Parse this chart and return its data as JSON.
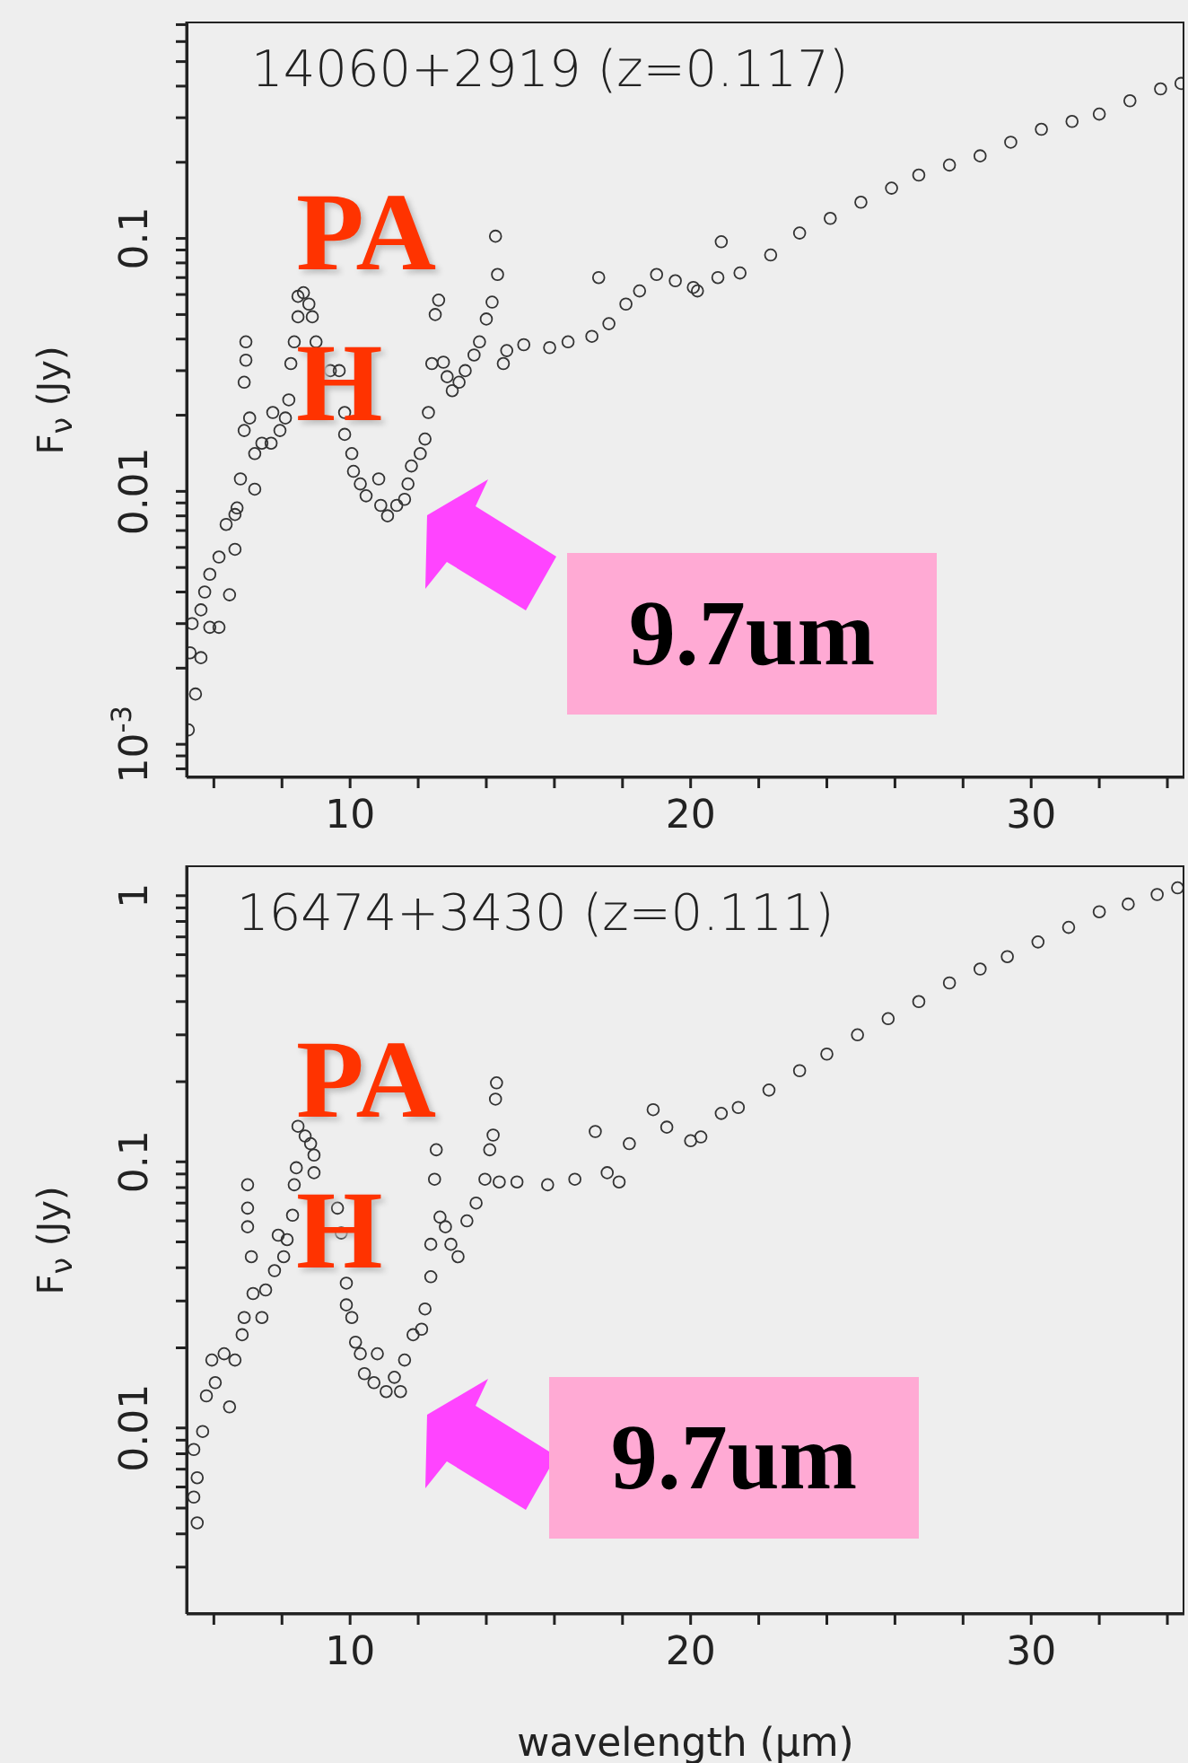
{
  "chart_data": [
    {
      "type": "scatter",
      "title": "14060+2919 (z=0.117)",
      "ylabel": "F$_{ν}$ (Jy)",
      "color": "#333333",
      "marker": "circle",
      "log": "y",
      "annotations": [
        "PA H",
        "9.7um"
      ],
      "xlim": [
        5.2,
        34.5
      ],
      "xticks": [
        {
          "value": 6,
          "label": null
        },
        {
          "value": 8,
          "label": null
        },
        10,
        {
          "value": 12,
          "label": null
        },
        {
          "value": 14,
          "label": null
        },
        {
          "value": 16,
          "label": null
        },
        {
          "value": 18,
          "label": null
        },
        20,
        {
          "value": 22,
          "label": null
        },
        {
          "value": 24,
          "label": null
        },
        {
          "value": 26,
          "label": null
        },
        {
          "value": 28,
          "label": null
        },
        30,
        {
          "value": 32,
          "label": null
        },
        {
          "value": 34,
          "label": null
        }
      ],
      "ylim": [
        0.00074,
        0.72
      ],
      "yticks": [
        {
          "value": 0.0008,
          "label": null
        },
        {
          "value": 0.0009,
          "label": null
        },
        {
          "value": 0.001,
          "label": "10$^{-3}$"
        },
        {
          "value": 0.002,
          "label": null
        },
        {
          "value": 0.003,
          "label": null
        },
        {
          "value": 0.004,
          "label": null
        },
        {
          "value": 0.005,
          "label": null
        },
        {
          "value": 0.006,
          "label": null
        },
        {
          "value": 0.007,
          "label": null
        },
        {
          "value": 0.008,
          "label": null
        },
        {
          "value": 0.009,
          "label": null
        },
        0.01,
        {
          "value": 0.02,
          "label": null
        },
        {
          "value": 0.03,
          "label": null
        },
        {
          "value": 0.04,
          "label": null
        },
        {
          "value": 0.05,
          "label": null
        },
        {
          "value": 0.06,
          "label": null
        },
        {
          "value": 0.07,
          "label": null
        },
        {
          "value": 0.08,
          "label": null
        },
        {
          "value": 0.09,
          "label": null
        },
        0.1,
        {
          "value": 0.2,
          "label": null
        },
        {
          "value": 0.3,
          "label": null
        },
        {
          "value": 0.4,
          "label": null
        },
        {
          "value": 0.5,
          "label": null
        },
        {
          "value": 0.6,
          "label": null
        },
        {
          "value": 0.7,
          "label": null
        }
      ],
      "x": [
        5.25,
        5.46,
        5.3,
        5.62,
        5.36,
        5.62,
        5.88,
        6.15,
        5.73,
        5.88,
        6.15,
        6.46,
        6.36,
        6.62,
        6.68,
        6.62,
        6.78,
        7.2,
        6.94,
        6.94,
        6.89,
        7.05,
        6.89,
        7.2,
        7.41,
        7.68,
        7.94,
        7.73,
        8.1,
        8.2,
        8.26,
        8.36,
        8.47,
        8.47,
        8.63,
        8.79,
        8.89,
        9.0,
        9.05,
        9.42,
        9.68,
        9.84,
        9.84,
        10.05,
        10.1,
        10.3,
        10.47,
        10.84,
        10.9,
        11.1,
        11.37,
        11.6,
        11.7,
        11.8,
        12.06,
        12.2,
        12.3,
        12.4,
        12.5,
        12.6,
        12.74,
        12.85,
        13.0,
        13.2,
        13.38,
        13.64,
        13.8,
        14.0,
        14.17,
        14.33,
        14.27,
        14.5,
        14.6,
        15.1,
        15.86,
        16.4,
        17.1,
        17.3,
        17.6,
        18.1,
        18.5,
        19.0,
        19.55,
        20.08,
        20.2,
        20.9,
        20.8,
        21.45,
        22.35,
        23.2,
        24.1,
        25.0,
        25.9,
        26.7,
        27.6,
        28.5,
        29.4,
        30.3,
        31.2,
        32.0,
        32.9,
        33.8,
        34.4
      ],
      "values": [
        0.00114,
        0.00158,
        0.0023,
        0.0022,
        0.003,
        0.0034,
        0.0029,
        0.0029,
        0.004,
        0.0047,
        0.0055,
        0.0039,
        0.0074,
        0.0081,
        0.0086,
        0.0059,
        0.0112,
        0.0102,
        0.039,
        0.033,
        0.027,
        0.0195,
        0.0174,
        0.0141,
        0.0155,
        0.0155,
        0.0174,
        0.0205,
        0.0195,
        0.023,
        0.032,
        0.039,
        0.049,
        0.059,
        0.061,
        0.055,
        0.049,
        0.039,
        null,
        0.03,
        0.03,
        0.0205,
        0.0168,
        0.0141,
        0.012,
        0.0107,
        0.0096,
        0.0112,
        0.0088,
        0.008,
        0.0088,
        0.0093,
        0.0107,
        0.0126,
        0.0141,
        0.0161,
        0.0205,
        0.032,
        0.05,
        0.057,
        0.0324,
        0.0284,
        0.025,
        0.027,
        0.03,
        0.0346,
        0.039,
        0.048,
        0.056,
        0.072,
        0.102,
        0.032,
        0.036,
        0.038,
        0.037,
        0.039,
        0.041,
        0.07,
        0.046,
        0.055,
        0.062,
        0.072,
        0.068,
        0.064,
        0.062,
        0.097,
        0.07,
        0.073,
        0.086,
        0.105,
        0.12,
        0.139,
        0.158,
        0.178,
        0.195,
        0.212,
        0.24,
        0.27,
        0.29,
        0.31,
        0.35,
        0.39,
        0.41
      ]
    },
    {
      "type": "scatter",
      "title": "16474+3430 (z=0.111)",
      "ylabel": "F$_{ν}$ (Jy)",
      "xlabel": "wavelength (μm)",
      "color": "#333333",
      "marker": "circle",
      "log": "y",
      "annotations": [
        "PA H",
        "9.7um"
      ],
      "xlim": [
        5.2,
        34.5
      ],
      "xticks": [
        {
          "value": 6,
          "label": null
        },
        {
          "value": 8,
          "label": null
        },
        10,
        {
          "value": 12,
          "label": null
        },
        {
          "value": 14,
          "label": null
        },
        {
          "value": 16,
          "label": null
        },
        {
          "value": 18,
          "label": null
        },
        20,
        {
          "value": 22,
          "label": null
        },
        {
          "value": 24,
          "label": null
        },
        {
          "value": 26,
          "label": null
        },
        {
          "value": 28,
          "label": null
        },
        30,
        {
          "value": 32,
          "label": null
        },
        {
          "value": 34,
          "label": null
        }
      ],
      "ylim": [
        0.002,
        1.3
      ],
      "yticks": [
        {
          "value": 0.003,
          "label": null
        },
        {
          "value": 0.004,
          "label": null
        },
        {
          "value": 0.005,
          "label": null
        },
        {
          "value": 0.006,
          "label": null
        },
        {
          "value": 0.007,
          "label": null
        },
        {
          "value": 0.008,
          "label": null
        },
        {
          "value": 0.009,
          "label": null
        },
        0.01,
        {
          "value": 0.02,
          "label": null
        },
        {
          "value": 0.03,
          "label": null
        },
        {
          "value": 0.04,
          "label": null
        },
        {
          "value": 0.05,
          "label": null
        },
        {
          "value": 0.06,
          "label": null
        },
        {
          "value": 0.07,
          "label": null
        },
        {
          "value": 0.08,
          "label": null
        },
        {
          "value": 0.09,
          "label": null
        },
        0.1,
        {
          "value": 0.2,
          "label": null
        },
        {
          "value": 0.3,
          "label": null
        },
        {
          "value": 0.4,
          "label": null
        },
        {
          "value": 0.5,
          "label": null
        },
        {
          "value": 0.6,
          "label": null
        },
        {
          "value": 0.7,
          "label": null
        },
        {
          "value": 0.8,
          "label": null
        },
        {
          "value": 0.9,
          "label": null
        },
        1
      ],
      "x": [
        5.51,
        5.41,
        5.51,
        5.41,
        5.67,
        5.78,
        6.04,
        5.94,
        6.46,
        6.3,
        6.62,
        6.83,
        6.89,
        6.99,
        6.99,
        6.99,
        7.1,
        7.15,
        7.41,
        7.52,
        7.78,
        7.89,
        8.05,
        8.15,
        8.31,
        8.36,
        8.42,
        8.47,
        8.68,
        8.84,
        8.94,
        8.94,
        9.0,
        9.63,
        9.74,
        9.89,
        9.89,
        10.05,
        10.16,
        10.3,
        10.42,
        10.8,
        10.7,
        11.06,
        11.3,
        11.48,
        11.6,
        11.85,
        12.1,
        12.2,
        12.37,
        12.37,
        12.48,
        12.53,
        12.64,
        12.8,
        12.96,
        13.17,
        13.43,
        13.7,
        13.96,
        14.1,
        14.2,
        14.27,
        14.3,
        14.38,
        14.9,
        15.8,
        16.6,
        17.2,
        17.55,
        17.9,
        18.2,
        18.9,
        19.3,
        20.0,
        20.3,
        20.9,
        21.4,
        22.3,
        23.2,
        24.0,
        24.9,
        25.8,
        26.7,
        27.6,
        28.5,
        29.3,
        30.2,
        31.1,
        32.0,
        32.85,
        33.7,
        34.3
      ],
      "values": [
        0.0044,
        0.0055,
        0.0065,
        0.0083,
        0.0097,
        0.0132,
        0.0148,
        0.018,
        0.012,
        0.019,
        0.018,
        0.0224,
        0.026,
        0.082,
        0.067,
        0.057,
        0.044,
        0.032,
        0.026,
        0.033,
        0.039,
        0.053,
        0.044,
        0.051,
        0.063,
        0.082,
        0.095,
        0.136,
        0.125,
        0.117,
        0.106,
        0.091,
        null,
        0.067,
        0.054,
        0.035,
        0.029,
        0.026,
        0.021,
        0.019,
        0.016,
        0.019,
        0.0148,
        0.0137,
        0.0155,
        0.0137,
        0.018,
        0.0224,
        0.0235,
        0.028,
        0.037,
        0.049,
        0.086,
        0.111,
        0.062,
        0.057,
        0.049,
        0.044,
        0.06,
        0.07,
        0.086,
        0.111,
        0.126,
        0.172,
        0.198,
        0.084,
        0.084,
        0.082,
        0.086,
        0.13,
        0.091,
        0.084,
        0.117,
        0.157,
        0.135,
        0.12,
        0.124,
        0.152,
        0.16,
        0.186,
        0.22,
        0.254,
        0.3,
        0.345,
        0.4,
        0.47,
        0.53,
        0.59,
        0.67,
        0.76,
        0.87,
        0.93,
        1.01,
        1.07
      ]
    }
  ]
}
